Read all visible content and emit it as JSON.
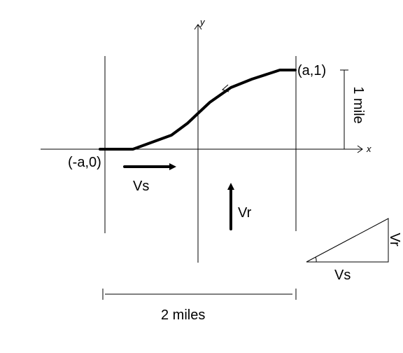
{
  "axes": {
    "y_label": "y",
    "x_label": "x"
  },
  "points": {
    "end": "(a,1)",
    "start": "(-a,0)"
  },
  "dimensions": {
    "height": "1 mile",
    "width": "2 miles"
  },
  "vectors": {
    "stream": "Vs",
    "rower": "Vr"
  },
  "triangle": {
    "vertical": "Vr",
    "horizontal": "Vs"
  }
}
